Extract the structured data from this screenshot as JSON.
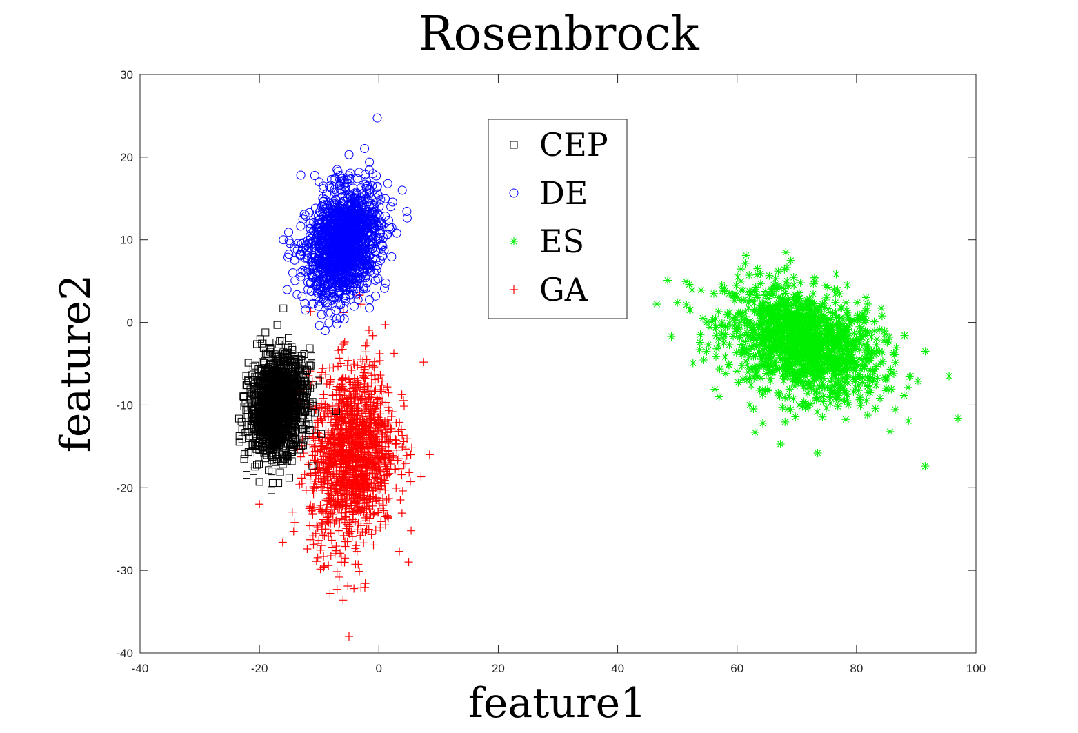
{
  "chart_data": {
    "type": "scatter",
    "title": "Rosenbrock",
    "xlabel": "feature1",
    "ylabel": "feature2",
    "xlim": [
      -40,
      100
    ],
    "ylim": [
      -40,
      30
    ],
    "xticks": [
      -40,
      -20,
      0,
      20,
      40,
      60,
      80,
      100
    ],
    "yticks": [
      -40,
      -30,
      -20,
      -10,
      0,
      10,
      20,
      30
    ],
    "grid": false,
    "legend_position": "top-center",
    "series": [
      {
        "name": "CEP",
        "marker": "square",
        "color": "#000000",
        "cluster": {
          "center": [
            -17,
            -10
          ],
          "spread": [
            2.3,
            2.8
          ],
          "count": 1500
        },
        "points": [
          [
            -20,
            -19.3
          ],
          [
            -18,
            -20.3
          ],
          [
            -16,
            1.7
          ],
          [
            -17,
            -0.3
          ],
          [
            -21,
            -18
          ],
          [
            -13,
            -4.5
          ],
          [
            -23,
            -12
          ],
          [
            -12,
            -8.5
          ],
          [
            -19,
            -1.2
          ],
          [
            -15,
            -18.8
          ]
        ]
      },
      {
        "name": "DE",
        "marker": "circle",
        "color": "#0000ff",
        "cluster": {
          "center": [
            -6,
            9.5
          ],
          "spread": [
            3.0,
            3.2
          ],
          "count": 1500
        },
        "points": [
          [
            -5,
            20.3
          ],
          [
            -7,
            18.5
          ],
          [
            -10,
            17
          ],
          [
            1.5,
            16.8
          ],
          [
            3,
            10.8
          ],
          [
            -12,
            6
          ],
          [
            -9,
            -1
          ],
          [
            -16,
            10
          ],
          [
            -1,
            18
          ],
          [
            2,
            14
          ]
        ]
      },
      {
        "name": "ES",
        "marker": "asterisk",
        "color": "#00ee00",
        "cluster": {
          "center": [
            71,
            -2.5
          ],
          "spread": [
            6.5,
            3.2
          ],
          "count": 1500
        },
        "points": [
          [
            49,
            -1.7
          ],
          [
            50,
            2.4
          ],
          [
            97,
            -11.6
          ],
          [
            91.5,
            -17.4
          ],
          [
            73.5,
            -15.8
          ],
          [
            61.5,
            8.1
          ],
          [
            69,
            7.5
          ],
          [
            95.5,
            -6.5
          ],
          [
            63,
            -13.3
          ],
          [
            52,
            4.6
          ],
          [
            57,
            -9
          ]
        ]
      },
      {
        "name": "GA",
        "marker": "plus",
        "color": "#ff0000",
        "cluster": {
          "center": [
            -4.5,
            -16
          ],
          "spread": [
            3.5,
            5.3
          ],
          "count": 1500
        },
        "points": [
          [
            -5,
            -38
          ],
          [
            -6,
            -33.6
          ],
          [
            -3,
            -32.1
          ],
          [
            -7,
            -32.3
          ],
          [
            8.5,
            -16
          ],
          [
            7.5,
            -4.8
          ],
          [
            -1,
            -1.6
          ],
          [
            -3,
            2.2
          ],
          [
            -20,
            -22
          ],
          [
            -12,
            -27.4
          ],
          [
            5,
            -29
          ],
          [
            -17,
            -13.5
          ],
          [
            -2,
            -2.5
          ]
        ]
      }
    ]
  }
}
